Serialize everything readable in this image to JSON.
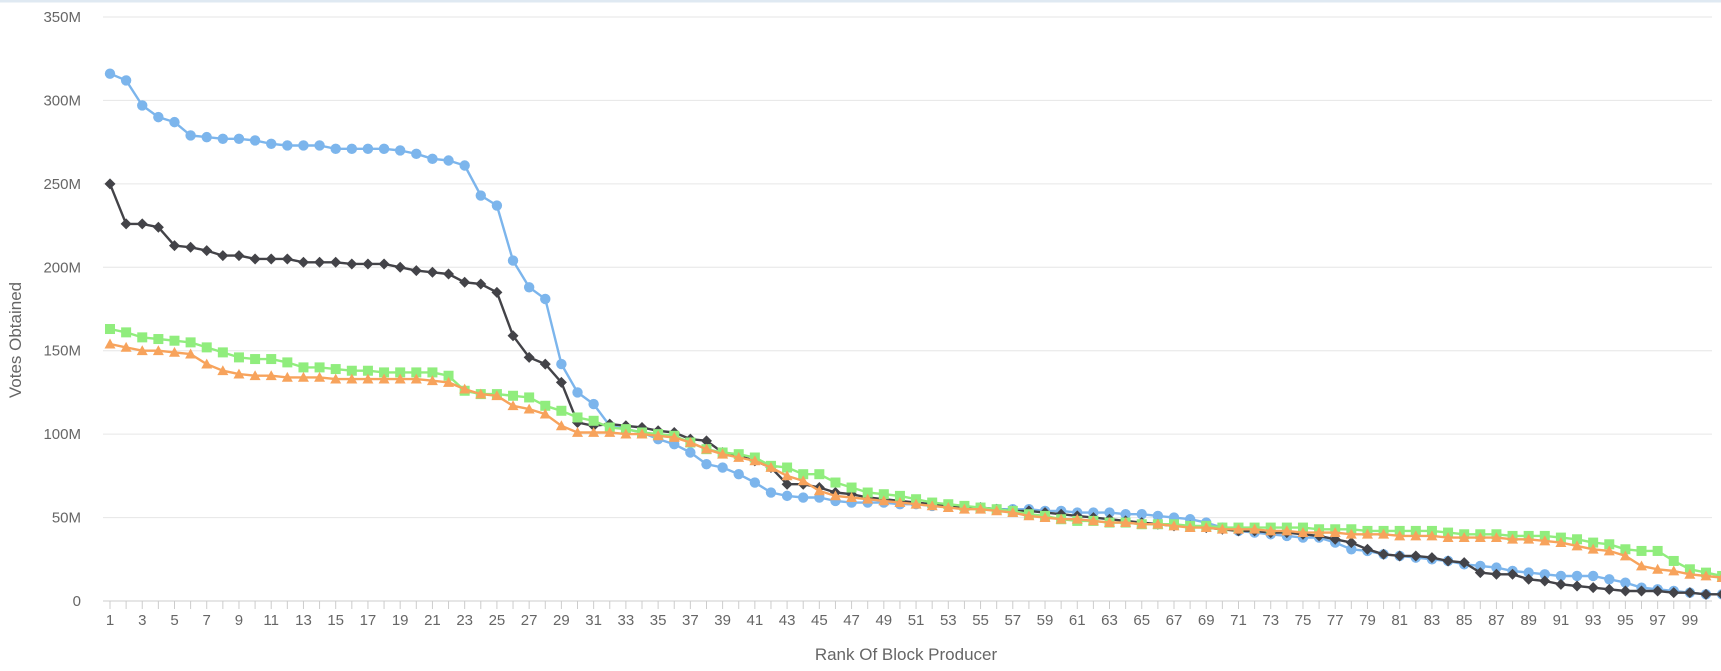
{
  "chart_data": {
    "type": "line",
    "title": "",
    "xlabel": "Rank Of Block Producer",
    "ylabel": "Votes Obtained",
    "ylim": [
      0,
      350000000
    ],
    "y_ticks": [
      {
        "value": 0,
        "label": "0"
      },
      {
        "value": 50000000,
        "label": "50M"
      },
      {
        "value": 100000000,
        "label": "100M"
      },
      {
        "value": 150000000,
        "label": "150M"
      },
      {
        "value": 200000000,
        "label": "200M"
      },
      {
        "value": 250000000,
        "label": "250M"
      },
      {
        "value": 300000000,
        "label": "300M"
      },
      {
        "value": 350000000,
        "label": "350M"
      }
    ],
    "x_range": [
      1,
      100
    ],
    "x_tick_labels": [
      "1",
      "3",
      "5",
      "7",
      "9",
      "11",
      "13",
      "15",
      "17",
      "19",
      "21",
      "23",
      "25",
      "27",
      "29",
      "31",
      "33",
      "35",
      "37",
      "39",
      "41",
      "43",
      "45",
      "47",
      "49",
      "51",
      "53",
      "55",
      "57",
      "59",
      "61",
      "63",
      "65",
      "67",
      "69",
      "71",
      "73",
      "75",
      "77",
      "79",
      "81",
      "83",
      "85",
      "87",
      "89",
      "91",
      "93",
      "95",
      "97",
      "99"
    ],
    "grid": true,
    "legend": "none",
    "series": [
      {
        "color": "#7cb5ec",
        "marker": "circle",
        "values_millions": [
          316,
          312,
          297,
          290,
          287,
          279,
          278,
          277,
          277,
          276,
          274,
          273,
          273,
          273,
          271,
          271,
          271,
          271,
          270,
          268,
          265,
          264,
          261,
          243,
          237,
          204,
          188,
          181,
          142,
          125,
          118,
          105,
          103,
          101,
          97,
          94,
          89,
          82,
          80,
          76,
          71,
          65,
          63,
          62,
          62,
          60,
          59,
          59,
          59,
          58,
          58,
          57,
          57,
          56,
          56,
          55,
          55,
          55,
          54,
          54,
          53,
          53,
          53,
          52,
          52,
          51,
          50,
          49,
          47,
          44,
          42,
          41,
          40,
          39,
          38,
          38,
          35,
          31,
          30,
          28,
          27,
          26,
          25,
          24,
          22,
          21,
          20,
          18,
          17,
          16,
          15,
          15,
          15,
          13,
          11,
          8,
          7,
          6,
          5,
          4,
          4
        ]
      },
      {
        "color": "#434348",
        "marker": "diamond",
        "values_millions": [
          250,
          226,
          226,
          224,
          213,
          212,
          210,
          207,
          207,
          205,
          205,
          205,
          203,
          203,
          203,
          202,
          202,
          202,
          200,
          198,
          197,
          196,
          191,
          190,
          185,
          159,
          146,
          142,
          131,
          107,
          105,
          106,
          105,
          104,
          102,
          101,
          97,
          96,
          89,
          87,
          84,
          80,
          70,
          70,
          68,
          65,
          64,
          62,
          61,
          60,
          59,
          58,
          57,
          56,
          56,
          55,
          54,
          54,
          53,
          52,
          51,
          50,
          49,
          48,
          47,
          46,
          45,
          45,
          44,
          43,
          42,
          42,
          41,
          41,
          40,
          39,
          37,
          35,
          31,
          28,
          27,
          27,
          26,
          24,
          23,
          17,
          16,
          16,
          13,
          12,
          10,
          9,
          8,
          7,
          6,
          6,
          6,
          5,
          5,
          4,
          4
        ]
      },
      {
        "color": "#90ed7d",
        "marker": "square",
        "values_millions": [
          163,
          161,
          158,
          157,
          156,
          155,
          152,
          149,
          146,
          145,
          145,
          143,
          140,
          140,
          139,
          138,
          138,
          137,
          137,
          137,
          137,
          135,
          126,
          124,
          124,
          123,
          122,
          117,
          114,
          110,
          108,
          104,
          103,
          101,
          100,
          99,
          95,
          91,
          89,
          88,
          86,
          81,
          80,
          76,
          76,
          71,
          68,
          65,
          64,
          63,
          61,
          59,
          58,
          57,
          56,
          55,
          54,
          52,
          51,
          49,
          48,
          48,
          47,
          47,
          46,
          46,
          46,
          45,
          45,
          44,
          44,
          44,
          44,
          44,
          44,
          43,
          43,
          43,
          42,
          42,
          42,
          42,
          42,
          41,
          40,
          40,
          40,
          39,
          39,
          39,
          38,
          37,
          35,
          34,
          31,
          30,
          30,
          24,
          19,
          17,
          15
        ]
      },
      {
        "color": "#f7a35c",
        "marker": "triangle",
        "values_millions": [
          154,
          152,
          150,
          150,
          149,
          148,
          142,
          138,
          136,
          135,
          135,
          134,
          134,
          134,
          133,
          133,
          133,
          133,
          133,
          133,
          132,
          131,
          127,
          124,
          123,
          117,
          115,
          112,
          105,
          101,
          101,
          101,
          100,
          100,
          99,
          98,
          95,
          91,
          88,
          86,
          84,
          80,
          75,
          72,
          66,
          63,
          62,
          61,
          60,
          59,
          58,
          57,
          56,
          55,
          55,
          54,
          53,
          51,
          50,
          49,
          49,
          48,
          47,
          47,
          46,
          46,
          45,
          44,
          44,
          43,
          43,
          43,
          42,
          42,
          41,
          41,
          41,
          40,
          40,
          40,
          39,
          39,
          39,
          38,
          38,
          38,
          38,
          37,
          37,
          36,
          35,
          33,
          31,
          30,
          27,
          21,
          19,
          18,
          16,
          15,
          14
        ]
      }
    ]
  }
}
